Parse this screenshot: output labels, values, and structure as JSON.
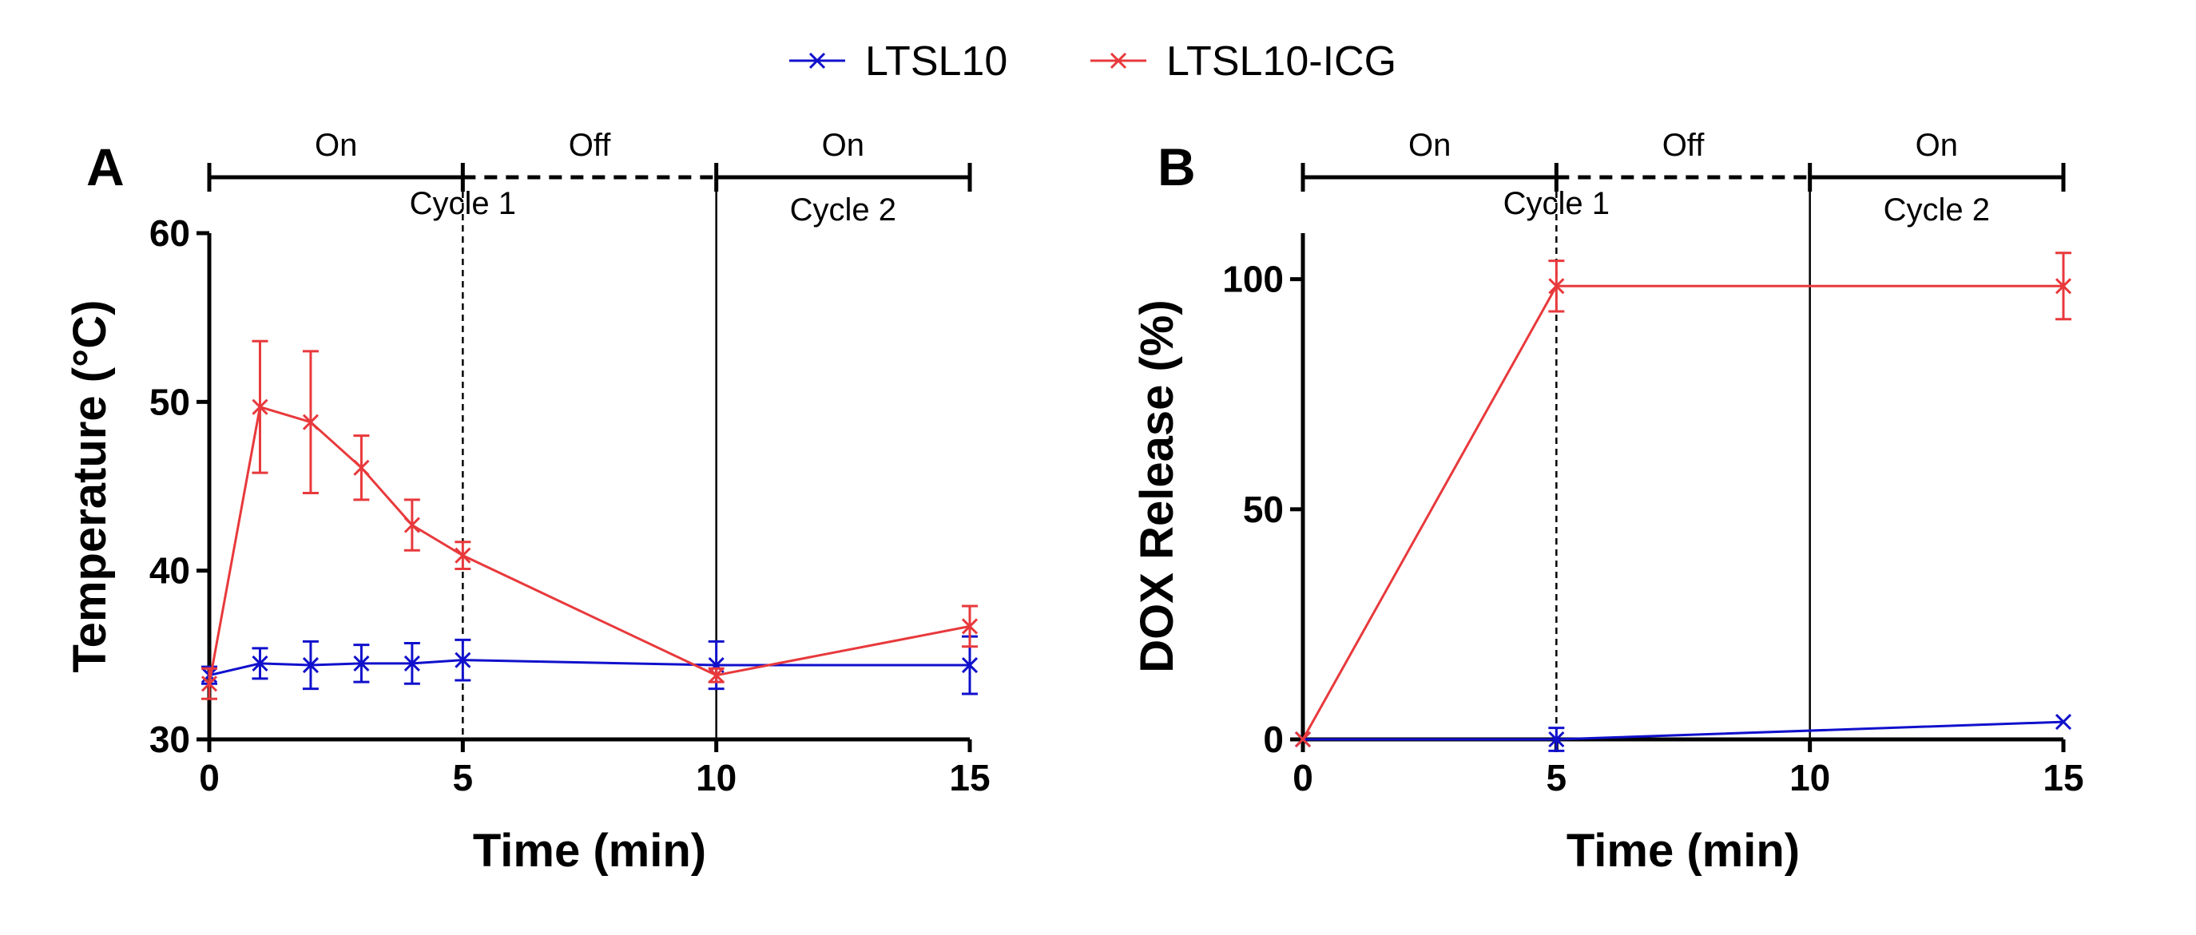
{
  "legend": {
    "items": [
      {
        "label": "LTSL10",
        "color": "#1010cc"
      },
      {
        "label": "LTSL10-ICG",
        "color": "#e8393c"
      }
    ]
  },
  "chart_data": [
    {
      "type": "line",
      "panel_label": "A",
      "xlabel": "Time (min)",
      "ylabel": "Temperature (°C)",
      "xlim": [
        0,
        15
      ],
      "ylim": [
        30,
        60
      ],
      "xticks": [
        0,
        5,
        10,
        15
      ],
      "yticks": [
        30,
        40,
        50,
        60
      ],
      "phases": [
        {
          "label": "On",
          "start": 0,
          "end": 5,
          "style": "solid"
        },
        {
          "label": "Off",
          "start": 5,
          "end": 10,
          "style": "dashed"
        },
        {
          "label": "On",
          "start": 10,
          "end": 15,
          "style": "solid"
        }
      ],
      "cycles": [
        {
          "label": "Cycle 1",
          "at": 5
        },
        {
          "label": "Cycle 2",
          "at": 12.5
        }
      ],
      "markers": [
        {
          "x": 5,
          "style": "dashed"
        },
        {
          "x": 10,
          "style": "solid"
        }
      ],
      "series": [
        {
          "name": "LTSL10",
          "color": "#1010cc",
          "x": [
            0,
            1,
            2,
            3,
            4,
            5,
            10,
            15
          ],
          "y": [
            33.8,
            34.5,
            34.4,
            34.5,
            34.5,
            34.7,
            34.4,
            34.4
          ],
          "err": [
            0.5,
            0.9,
            1.4,
            1.1,
            1.2,
            1.2,
            1.4,
            1.7
          ]
        },
        {
          "name": "LTSL10-ICG",
          "color": "#e8393c",
          "x": [
            0,
            1,
            2,
            3,
            4,
            5,
            10,
            15
          ],
          "y": [
            33.3,
            49.7,
            48.8,
            46.1,
            42.7,
            40.9,
            33.8,
            36.7
          ],
          "err": [
            0.9,
            3.9,
            4.2,
            1.9,
            1.5,
            0.8,
            0.4,
            1.2
          ]
        }
      ]
    },
    {
      "type": "line",
      "panel_label": "B",
      "xlabel": "Time (min)",
      "ylabel": "DOX Release (%)",
      "xlim": [
        0,
        15
      ],
      "ylim": [
        0,
        110
      ],
      "xticks": [
        0,
        5,
        10,
        15
      ],
      "yticks": [
        0,
        50,
        100
      ],
      "phases": [
        {
          "label": "On",
          "start": 0,
          "end": 5,
          "style": "solid"
        },
        {
          "label": "Off",
          "start": 5,
          "end": 10,
          "style": "dashed"
        },
        {
          "label": "On",
          "start": 10,
          "end": 15,
          "style": "solid"
        }
      ],
      "cycles": [
        {
          "label": "Cycle 1",
          "at": 5
        },
        {
          "label": "Cycle 2",
          "at": 12.5
        }
      ],
      "markers": [
        {
          "x": 5,
          "style": "dashed"
        },
        {
          "x": 10,
          "style": "solid"
        }
      ],
      "series": [
        {
          "name": "LTSL10",
          "color": "#1010cc",
          "x": [
            0,
            5,
            15
          ],
          "y": [
            0,
            0,
            3.8
          ],
          "err": [
            0,
            2.5,
            0
          ]
        },
        {
          "name": "LTSL10-ICG",
          "color": "#e8393c",
          "x": [
            0,
            5,
            15
          ],
          "y": [
            0,
            98.5,
            98.5
          ],
          "err": [
            0,
            5.5,
            7.2
          ]
        }
      ]
    }
  ]
}
